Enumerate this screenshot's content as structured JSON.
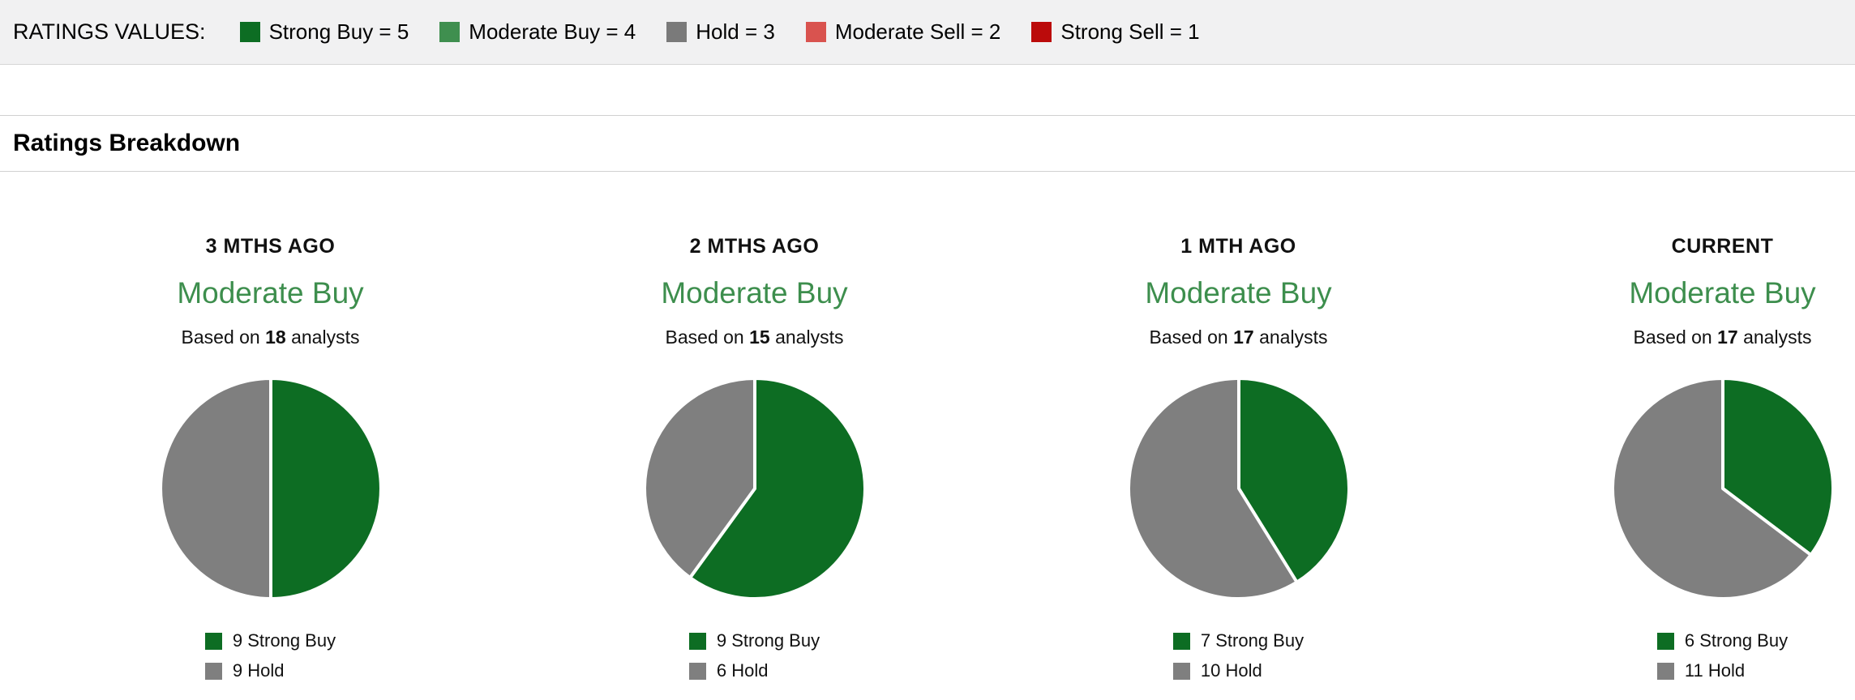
{
  "ratings_values": {
    "label": "RATINGS VALUES:",
    "items": [
      {
        "label": "Strong Buy = 5",
        "color": "#0d6d23"
      },
      {
        "label": "Moderate Buy = 4",
        "color": "#3f8f4f"
      },
      {
        "label": "Hold = 3",
        "color": "#7a7a7a"
      },
      {
        "label": "Moderate Sell = 2",
        "color": "#d9534f"
      },
      {
        "label": "Strong Sell = 1",
        "color": "#bb0b0b"
      }
    ]
  },
  "section": {
    "title": "Ratings Breakdown"
  },
  "chart_data": [
    {
      "type": "pie",
      "title": "3 MTHS AGO",
      "consensus": "Moderate Buy",
      "based_on_prefix": "Based on",
      "analysts": "18",
      "based_on_suffix": "analysts",
      "legend_position": "bottom",
      "slices": [
        {
          "label": "9 Strong Buy",
          "value": 9,
          "color": "#0d6d23"
        },
        {
          "label": "9 Hold",
          "value": 9,
          "color": "#7f7f7f"
        }
      ]
    },
    {
      "type": "pie",
      "title": "2 MTHS AGO",
      "consensus": "Moderate Buy",
      "based_on_prefix": "Based on",
      "analysts": "15",
      "based_on_suffix": "analysts",
      "legend_position": "bottom",
      "slices": [
        {
          "label": "9 Strong Buy",
          "value": 9,
          "color": "#0d6d23"
        },
        {
          "label": "6 Hold",
          "value": 6,
          "color": "#7f7f7f"
        }
      ]
    },
    {
      "type": "pie",
      "title": "1 MTH AGO",
      "consensus": "Moderate Buy",
      "based_on_prefix": "Based on",
      "analysts": "17",
      "based_on_suffix": "analysts",
      "legend_position": "bottom",
      "slices": [
        {
          "label": "7 Strong Buy",
          "value": 7,
          "color": "#0d6d23"
        },
        {
          "label": "10 Hold",
          "value": 10,
          "color": "#7f7f7f"
        }
      ]
    },
    {
      "type": "pie",
      "title": "CURRENT",
      "consensus": "Moderate Buy",
      "based_on_prefix": "Based on",
      "analysts": "17",
      "based_on_suffix": "analysts",
      "legend_position": "bottom",
      "slices": [
        {
          "label": "6 Strong Buy",
          "value": 6,
          "color": "#0d6d23"
        },
        {
          "label": "11 Hold",
          "value": 11,
          "color": "#7f7f7f"
        }
      ]
    }
  ]
}
